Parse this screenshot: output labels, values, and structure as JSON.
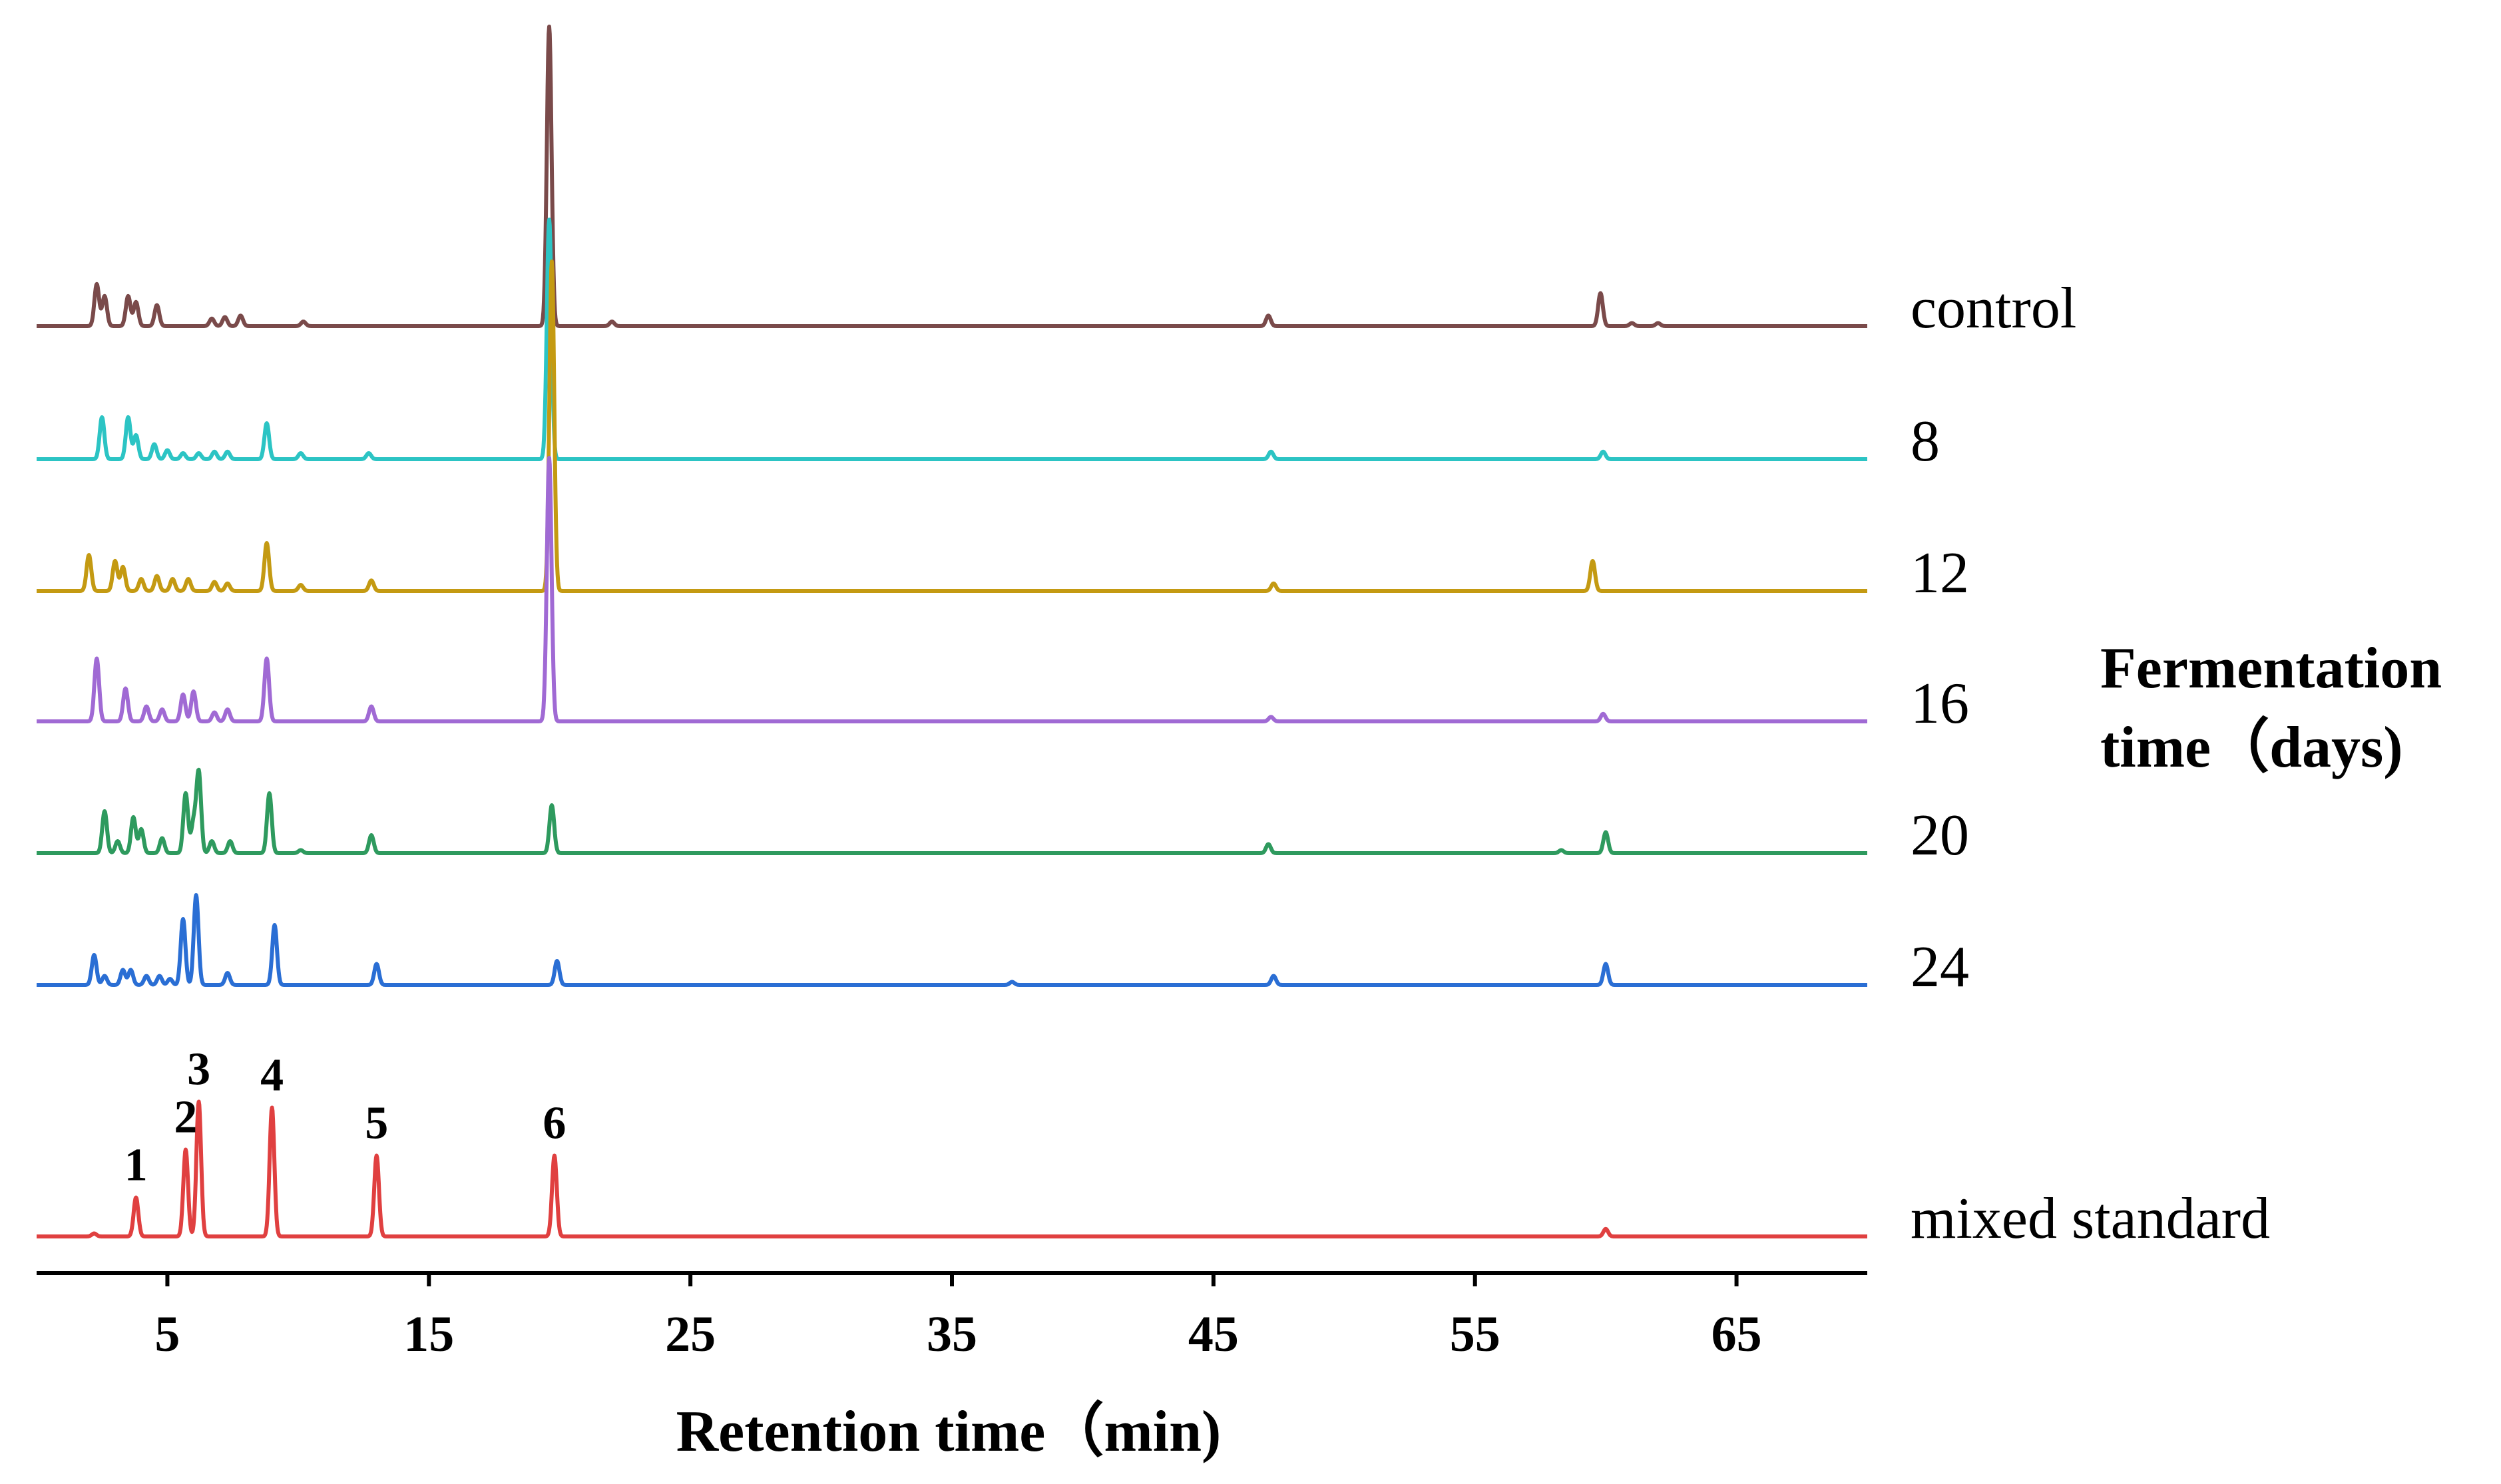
{
  "chart_data": {
    "type": "line",
    "title": "",
    "xlabel": "Retention time（min)",
    "ylabel": "",
    "xlim": [
      0,
      70
    ],
    "ticks": [
      5,
      15,
      25,
      35,
      45,
      55,
      65
    ],
    "tick_labels": [
      "5",
      "15",
      "25",
      "35",
      "45",
      "55",
      "65"
    ],
    "legend_title": [
      "Fermentation",
      "time（days)"
    ],
    "series": [
      {
        "name": "control",
        "color": "#7a4a4a",
        "peaks": [
          [
            2.3,
            0.14
          ],
          [
            2.6,
            0.1
          ],
          [
            3.5,
            0.1
          ],
          [
            3.8,
            0.08
          ],
          [
            4.6,
            0.07
          ],
          [
            6.7,
            0.025
          ],
          [
            7.2,
            0.03
          ],
          [
            7.8,
            0.035
          ],
          [
            10.2,
            0.015
          ],
          [
            19.6,
            1.0
          ],
          [
            22.0,
            0.015
          ],
          [
            47.1,
            0.035
          ],
          [
            59.8,
            0.11
          ],
          [
            61.0,
            0.01
          ],
          [
            62.0,
            0.01
          ]
        ]
      },
      {
        "name": "8",
        "color": "#2cc4c4",
        "peaks": [
          [
            2.5,
            0.14
          ],
          [
            3.5,
            0.14
          ],
          [
            3.8,
            0.08
          ],
          [
            4.5,
            0.05
          ],
          [
            5.0,
            0.03
          ],
          [
            5.6,
            0.02
          ],
          [
            6.2,
            0.02
          ],
          [
            6.8,
            0.025
          ],
          [
            7.3,
            0.025
          ],
          [
            8.8,
            0.12
          ],
          [
            10.1,
            0.02
          ],
          [
            12.7,
            0.02
          ],
          [
            19.6,
            0.8
          ],
          [
            47.2,
            0.025
          ],
          [
            59.9,
            0.025
          ]
        ]
      },
      {
        "name": "12",
        "color": "#c49a12",
        "peaks": [
          [
            2.0,
            0.12
          ],
          [
            3.0,
            0.1
          ],
          [
            3.3,
            0.08
          ],
          [
            4.0,
            0.04
          ],
          [
            4.6,
            0.05
          ],
          [
            5.2,
            0.04
          ],
          [
            5.8,
            0.04
          ],
          [
            6.8,
            0.03
          ],
          [
            7.3,
            0.025
          ],
          [
            8.8,
            0.16
          ],
          [
            10.1,
            0.02
          ],
          [
            12.8,
            0.035
          ],
          [
            19.7,
            1.1
          ],
          [
            47.3,
            0.025
          ],
          [
            59.5,
            0.1
          ]
        ]
      },
      {
        "name": "16",
        "color": "#a06ad4",
        "peaks": [
          [
            2.3,
            0.21
          ],
          [
            3.4,
            0.11
          ],
          [
            4.2,
            0.05
          ],
          [
            4.8,
            0.04
          ],
          [
            5.6,
            0.09
          ],
          [
            6.0,
            0.1
          ],
          [
            6.8,
            0.03
          ],
          [
            7.3,
            0.04
          ],
          [
            8.8,
            0.21
          ],
          [
            12.8,
            0.05
          ],
          [
            19.6,
            0.88
          ],
          [
            47.2,
            0.015
          ],
          [
            59.9,
            0.025
          ]
        ]
      },
      {
        "name": "20",
        "color": "#2e9a5e",
        "peaks": [
          [
            2.6,
            0.14
          ],
          [
            3.1,
            0.04
          ],
          [
            3.7,
            0.12
          ],
          [
            4.0,
            0.08
          ],
          [
            4.8,
            0.05
          ],
          [
            5.7,
            0.2
          ],
          [
            6.0,
            0.1
          ],
          [
            6.2,
            0.27
          ],
          [
            6.7,
            0.04
          ],
          [
            7.4,
            0.04
          ],
          [
            8.9,
            0.2
          ],
          [
            10.1,
            0.01
          ],
          [
            12.8,
            0.06
          ],
          [
            19.7,
            0.16
          ],
          [
            47.1,
            0.03
          ],
          [
            58.3,
            0.01
          ],
          [
            60.0,
            0.07
          ]
        ]
      },
      {
        "name": "24",
        "color": "#2a6ed4",
        "peaks": [
          [
            2.2,
            0.1
          ],
          [
            2.6,
            0.03
          ],
          [
            3.3,
            0.05
          ],
          [
            3.6,
            0.05
          ],
          [
            4.2,
            0.03
          ],
          [
            4.7,
            0.03
          ],
          [
            5.1,
            0.02
          ],
          [
            5.6,
            0.22
          ],
          [
            6.1,
            0.3
          ],
          [
            7.3,
            0.04
          ],
          [
            9.1,
            0.2
          ],
          [
            13.0,
            0.07
          ],
          [
            19.9,
            0.08
          ],
          [
            37.3,
            0.01
          ],
          [
            47.3,
            0.03
          ],
          [
            60.0,
            0.07
          ]
        ]
      },
      {
        "name": "mixed standard",
        "color": "#e04040",
        "peaks": [
          [
            2.2,
            0.01
          ],
          [
            3.8,
            0.13
          ],
          [
            5.7,
            0.29
          ],
          [
            6.2,
            0.45
          ],
          [
            9.0,
            0.43
          ],
          [
            13.0,
            0.27
          ],
          [
            19.8,
            0.27
          ],
          [
            60.0,
            0.025
          ]
        ]
      }
    ],
    "peak_labels": [
      {
        "label": "1",
        "x": 3.8,
        "y": 0.13
      },
      {
        "label": "2",
        "x": 5.7,
        "y": 0.29
      },
      {
        "label": "3",
        "x": 6.2,
        "y": 0.45
      },
      {
        "label": "4",
        "x": 9.0,
        "y": 0.43
      },
      {
        "label": "5",
        "x": 13.0,
        "y": 0.27
      },
      {
        "label": "6",
        "x": 19.8,
        "y": 0.27
      }
    ]
  }
}
